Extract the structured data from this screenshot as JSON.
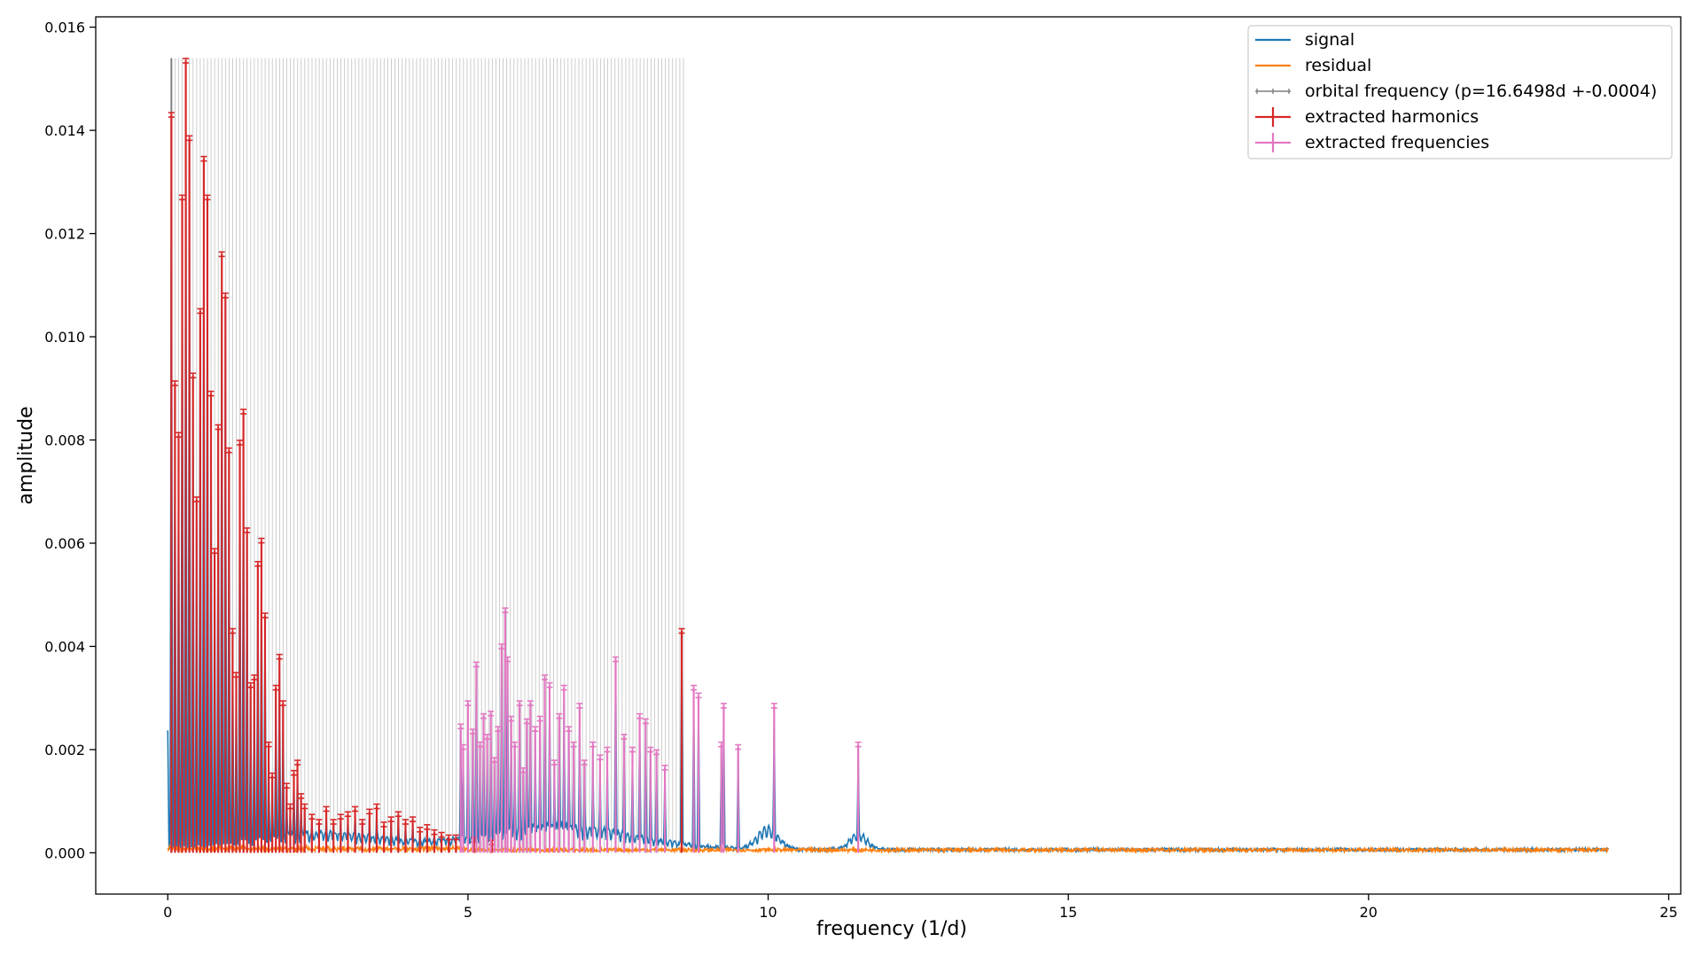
{
  "chart_data": {
    "type": "line",
    "xlabel": "frequency (1/d)",
    "ylabel": "amplitude",
    "xlim": [
      -1.2,
      25.2
    ],
    "ylim": [
      -0.0008,
      0.0162
    ],
    "xticks": [
      0,
      5,
      10,
      15,
      20,
      25
    ],
    "yticks": [
      0.0,
      0.002,
      0.004,
      0.006,
      0.008,
      0.01,
      0.012,
      0.014,
      0.016
    ],
    "xtick_labels": [
      "0",
      "5",
      "10",
      "15",
      "20",
      "25"
    ],
    "ytick_labels": [
      "0.000",
      "0.002",
      "0.004",
      "0.006",
      "0.008",
      "0.010",
      "0.012",
      "0.014",
      "0.016"
    ],
    "legend_position": "top-right",
    "colors": {
      "signal": "#1f77b4",
      "residual": "#ff7f0e",
      "orbital": "#7f7f7f",
      "harmonics": "#d62728",
      "frequencies": "#e377c2"
    },
    "legend": [
      {
        "label": "signal",
        "color": "#1f77b4",
        "style": "line"
      },
      {
        "label": "residual",
        "color": "#ff7f0e",
        "style": "line"
      },
      {
        "label": "orbital frequency (p=16.6498d +-0.0004)",
        "color": "#7f7f7f",
        "style": "errorbar-thin"
      },
      {
        "label": "extracted harmonics",
        "color": "#d62728",
        "style": "errorbar"
      },
      {
        "label": "extracted frequencies",
        "color": "#e377c2",
        "style": "errorbar"
      }
    ],
    "orbital_frequency": {
      "period_days": 16.6498,
      "error_days": 0.0004,
      "harmonic_line_max_freq": 8.6,
      "line_height": 0.0154
    },
    "harmonics": [
      [
        0.06,
        0.0143
      ],
      [
        0.12,
        0.0091
      ],
      [
        0.18,
        0.0081
      ],
      [
        0.24,
        0.0127
      ],
      [
        0.3,
        0.01535
      ],
      [
        0.36,
        0.01385
      ],
      [
        0.42,
        0.00925
      ],
      [
        0.48,
        0.00685
      ],
      [
        0.54,
        0.0105
      ],
      [
        0.6,
        0.01345
      ],
      [
        0.66,
        0.0127
      ],
      [
        0.72,
        0.0089
      ],
      [
        0.78,
        0.00585
      ],
      [
        0.84,
        0.00825
      ],
      [
        0.9,
        0.0116
      ],
      [
        0.96,
        0.0108
      ],
      [
        1.02,
        0.0078
      ],
      [
        1.08,
        0.0043
      ],
      [
        1.14,
        0.00345
      ],
      [
        1.2,
        0.00795
      ],
      [
        1.26,
        0.00855
      ],
      [
        1.32,
        0.00625
      ],
      [
        1.38,
        0.00325
      ],
      [
        1.44,
        0.0034
      ],
      [
        1.5,
        0.0056
      ],
      [
        1.56,
        0.00605
      ],
      [
        1.62,
        0.0046
      ],
      [
        1.68,
        0.0021
      ],
      [
        1.74,
        0.0015
      ],
      [
        1.8,
        0.0032
      ],
      [
        1.86,
        0.0038
      ],
      [
        1.92,
        0.0029
      ],
      [
        1.98,
        0.0013
      ],
      [
        2.04,
        0.0009
      ],
      [
        2.1,
        0.00155
      ],
      [
        2.16,
        0.00175
      ],
      [
        2.22,
        0.0011
      ],
      [
        2.28,
        0.0009
      ],
      [
        2.4,
        0.0007
      ],
      [
        2.52,
        0.0006
      ],
      [
        2.64,
        0.00085
      ],
      [
        2.76,
        0.0006
      ],
      [
        2.88,
        0.0007
      ],
      [
        3.0,
        0.00075
      ],
      [
        3.12,
        0.00085
      ],
      [
        3.24,
        0.0006
      ],
      [
        3.36,
        0.0008
      ],
      [
        3.48,
        0.0009
      ],
      [
        3.6,
        0.00055
      ],
      [
        3.72,
        0.00065
      ],
      [
        3.84,
        0.00075
      ],
      [
        3.96,
        0.0006
      ],
      [
        4.08,
        0.00065
      ],
      [
        4.2,
        0.00045
      ],
      [
        4.32,
        0.0005
      ],
      [
        4.44,
        0.0004
      ],
      [
        4.56,
        0.00035
      ],
      [
        4.68,
        0.0003
      ],
      [
        4.8,
        0.0003
      ],
      [
        5.1,
        0.00025
      ],
      [
        5.4,
        0.0002
      ],
      [
        8.56,
        0.0043
      ]
    ],
    "frequencies": [
      [
        4.88,
        0.00245
      ],
      [
        4.92,
        0.00205
      ],
      [
        5.0,
        0.0029
      ],
      [
        5.08,
        0.00235
      ],
      [
        5.14,
        0.00365
      ],
      [
        5.2,
        0.0021
      ],
      [
        5.26,
        0.00265
      ],
      [
        5.32,
        0.00225
      ],
      [
        5.38,
        0.0027
      ],
      [
        5.44,
        0.0018
      ],
      [
        5.5,
        0.0024
      ],
      [
        5.56,
        0.004
      ],
      [
        5.62,
        0.0047
      ],
      [
        5.66,
        0.00375
      ],
      [
        5.72,
        0.0026
      ],
      [
        5.78,
        0.0021
      ],
      [
        5.86,
        0.0029
      ],
      [
        5.92,
        0.0016
      ],
      [
        5.98,
        0.00255
      ],
      [
        6.04,
        0.0029
      ],
      [
        6.12,
        0.0024
      ],
      [
        6.2,
        0.0026
      ],
      [
        6.28,
        0.0034
      ],
      [
        6.36,
        0.00325
      ],
      [
        6.44,
        0.00175
      ],
      [
        6.52,
        0.00265
      ],
      [
        6.6,
        0.0032
      ],
      [
        6.68,
        0.0024
      ],
      [
        6.76,
        0.0021
      ],
      [
        6.86,
        0.00285
      ],
      [
        6.94,
        0.00175
      ],
      [
        7.08,
        0.0021
      ],
      [
        7.2,
        0.00185
      ],
      [
        7.32,
        0.002
      ],
      [
        7.46,
        0.00375
      ],
      [
        7.6,
        0.00225
      ],
      [
        7.74,
        0.002
      ],
      [
        7.86,
        0.00265
      ],
      [
        7.96,
        0.00255
      ],
      [
        8.04,
        0.002
      ],
      [
        8.14,
        0.00195
      ],
      [
        8.28,
        0.00165
      ],
      [
        8.76,
        0.0032
      ],
      [
        8.84,
        0.00305
      ],
      [
        9.22,
        0.0021
      ],
      [
        9.26,
        0.00285
      ],
      [
        9.5,
        0.00205
      ],
      [
        10.1,
        0.00285
      ],
      [
        11.5,
        0.0021
      ]
    ]
  }
}
